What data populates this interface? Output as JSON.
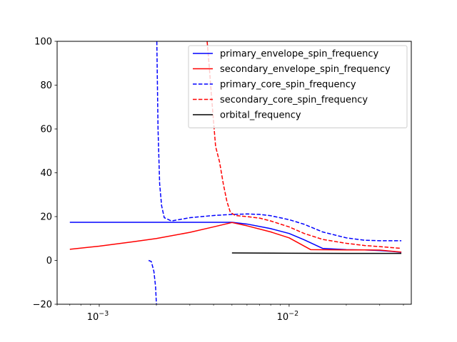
{
  "chart_data": {
    "type": "line",
    "title": "",
    "xlabel": "",
    "ylabel": "",
    "xscale": "log",
    "xlim": [
      0.0006,
      0.044
    ],
    "ylim": [
      -20,
      100
    ],
    "grid": false,
    "legend_position": "top-right",
    "y_ticks": [
      {
        "value": -20,
        "label": "−20"
      },
      {
        "value": 0,
        "label": "0"
      },
      {
        "value": 20,
        "label": "20"
      },
      {
        "value": 40,
        "label": "40"
      },
      {
        "value": 60,
        "label": "60"
      },
      {
        "value": 80,
        "label": "80"
      },
      {
        "value": 100,
        "label": "100"
      }
    ],
    "x_major_ticks": [
      {
        "value": 0.001,
        "base": "10",
        "exp": "−3"
      },
      {
        "value": 0.01,
        "base": "10",
        "exp": "−2"
      }
    ],
    "x_minor_ticks": [
      0.0006,
      0.0007,
      0.0008,
      0.0009,
      0.002,
      0.003,
      0.004,
      0.005,
      0.006,
      0.007,
      0.008,
      0.009,
      0.02,
      0.03,
      0.04
    ],
    "series": [
      {
        "name": "primary_envelope_spin_frequency",
        "color": "#0000ff",
        "dash": "solid",
        "points": [
          [
            0.0007,
            17.4
          ],
          [
            0.002,
            17.4
          ],
          [
            0.005,
            17.4
          ],
          [
            0.006,
            16.6
          ],
          [
            0.008,
            14.5
          ],
          [
            0.01,
            12.3
          ],
          [
            0.012,
            9.4
          ],
          [
            0.015,
            5.5
          ],
          [
            0.02,
            4.9
          ],
          [
            0.025,
            4.8
          ],
          [
            0.03,
            4.5
          ],
          [
            0.035,
            4.1
          ],
          [
            0.039,
            3.7
          ]
        ]
      },
      {
        "name": "secondary_envelope_spin_frequency",
        "color": "#ff0000",
        "dash": "solid",
        "points": [
          [
            0.0007,
            5.1
          ],
          [
            0.001,
            6.5
          ],
          [
            0.0015,
            8.5
          ],
          [
            0.002,
            10.0
          ],
          [
            0.003,
            12.8
          ],
          [
            0.004,
            15.3
          ],
          [
            0.005,
            17.3
          ],
          [
            0.006,
            15.8
          ],
          [
            0.008,
            13.0
          ],
          [
            0.01,
            10.3
          ],
          [
            0.013,
            4.9
          ],
          [
            0.02,
            4.8
          ],
          [
            0.025,
            4.8
          ],
          [
            0.03,
            4.7
          ],
          [
            0.039,
            3.8
          ]
        ]
      },
      {
        "name": "primary_core_spin_frequency",
        "color": "#0000ff",
        "dash": "dashed",
        "segments": [
          [
            [
              0.00182,
              0.0
            ],
            [
              0.00188,
              -0.5
            ],
            [
              0.00194,
              -5.0
            ],
            [
              0.00198,
              -12.0
            ],
            [
              0.002,
              -20.0
            ]
          ],
          [
            [
              0.00201,
              100.0
            ],
            [
              0.00204,
              60.0
            ],
            [
              0.00208,
              35.0
            ],
            [
              0.00213,
              25.0
            ],
            [
              0.0022,
              19.5
            ],
            [
              0.0024,
              18.0
            ],
            [
              0.003,
              19.5
            ],
            [
              0.004,
              20.5
            ],
            [
              0.005,
              21.0
            ],
            [
              0.006,
              21.2
            ],
            [
              0.007,
              21.0
            ],
            [
              0.008,
              20.4
            ],
            [
              0.01,
              18.6
            ],
            [
              0.012,
              16.5
            ],
            [
              0.015,
              13.0
            ],
            [
              0.02,
              10.3
            ],
            [
              0.025,
              9.2
            ],
            [
              0.03,
              9.0
            ],
            [
              0.039,
              9.0
            ]
          ]
        ]
      },
      {
        "name": "secondary_core_spin_frequency",
        "color": "#ff0000",
        "dash": "dashed",
        "segments": [
          [
            [
              0.0037,
              100.0
            ],
            [
              0.0038,
              88.0
            ],
            [
              0.0039,
              75.0
            ],
            [
              0.0041,
              52.0
            ],
            [
              0.0043,
              45.0
            ],
            [
              0.0045,
              35.0
            ],
            [
              0.0047,
              27.0
            ],
            [
              0.0049,
              22.0
            ],
            [
              0.0052,
              20.5
            ],
            [
              0.006,
              20.0
            ],
            [
              0.007,
              19.3
            ],
            [
              0.008,
              18.0
            ],
            [
              0.01,
              15.3
            ],
            [
              0.012,
              12.3
            ],
            [
              0.015,
              9.6
            ],
            [
              0.02,
              7.8
            ],
            [
              0.025,
              6.8
            ],
            [
              0.03,
              6.3
            ],
            [
              0.039,
              5.5
            ]
          ]
        ]
      },
      {
        "name": "orbital_frequency",
        "color": "#000000",
        "dash": "solid",
        "points": [
          [
            0.005,
            3.4
          ],
          [
            0.01,
            3.3
          ],
          [
            0.02,
            3.2
          ],
          [
            0.039,
            3.2
          ]
        ]
      }
    ]
  }
}
